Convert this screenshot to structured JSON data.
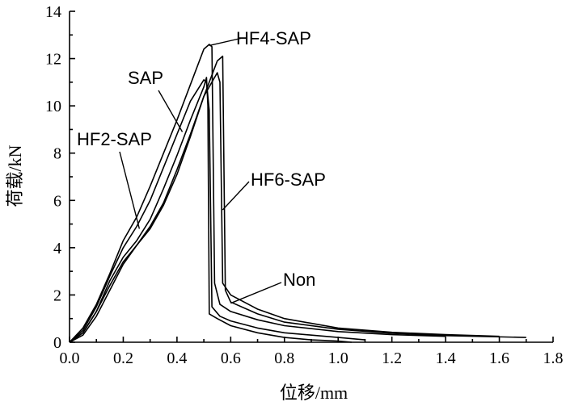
{
  "chart_data": {
    "type": "line",
    "xlabel": "位移/mm",
    "ylabel": "荷载/kN",
    "xlim": [
      0,
      1.8
    ],
    "ylim": [
      0,
      14
    ],
    "xticks": [
      0.0,
      0.2,
      0.4,
      0.6,
      0.8,
      1.0,
      1.2,
      1.4,
      1.6,
      1.8
    ],
    "yticks": [
      0,
      2,
      4,
      6,
      8,
      10,
      12,
      14
    ],
    "xtick_labels": [
      "0.0",
      "0.2",
      "0.4",
      "0.6",
      "0.8",
      "1.0",
      "1.2",
      "1.4",
      "1.6",
      "1.8"
    ],
    "ytick_labels": [
      "0",
      "2",
      "4",
      "6",
      "8",
      "10",
      "12",
      "14"
    ],
    "grid": false,
    "legend": "none",
    "line_color": "#000000",
    "series": [
      {
        "name": "HF4-SAP",
        "x": [
          0,
          0.05,
          0.1,
          0.15,
          0.2,
          0.25,
          0.3,
          0.35,
          0.4,
          0.45,
          0.5,
          0.52,
          0.53,
          0.54,
          0.56,
          0.6,
          0.7,
          0.8,
          1.0,
          1.2,
          1.4
        ],
        "y": [
          0,
          0.6,
          1.6,
          2.9,
          4.3,
          5.3,
          6.6,
          8.0,
          9.4,
          10.9,
          12.4,
          12.6,
          12.5,
          2.5,
          1.6,
          1.3,
          0.95,
          0.7,
          0.45,
          0.32,
          0.25
        ]
      },
      {
        "name": "SAP",
        "x": [
          0,
          0.05,
          0.1,
          0.15,
          0.2,
          0.25,
          0.3,
          0.35,
          0.4,
          0.45,
          0.5,
          0.51,
          0.52,
          0.53,
          0.56,
          0.6,
          0.7,
          0.8,
          1.0,
          1.1
        ],
        "y": [
          0,
          0.5,
          1.5,
          2.8,
          4.0,
          4.9,
          6.0,
          7.4,
          8.8,
          10.2,
          11.1,
          11.0,
          9.8,
          1.5,
          1.1,
          0.9,
          0.6,
          0.4,
          0.2,
          0.1
        ]
      },
      {
        "name": "HF2-SAP",
        "x": [
          0,
          0.05,
          0.1,
          0.15,
          0.2,
          0.25,
          0.3,
          0.35,
          0.4,
          0.45,
          0.5,
          0.51,
          0.515,
          0.52,
          0.55,
          0.6,
          0.7,
          0.8,
          0.9,
          1.0,
          1.05
        ],
        "y": [
          0,
          0.4,
          1.3,
          2.6,
          3.6,
          4.3,
          5.2,
          6.5,
          7.9,
          9.4,
          10.8,
          11.2,
          10.0,
          1.2,
          1.0,
          0.7,
          0.4,
          0.2,
          0.1,
          0.05,
          0.0
        ]
      },
      {
        "name": "HF6-SAP",
        "x": [
          0,
          0.05,
          0.1,
          0.15,
          0.2,
          0.25,
          0.3,
          0.35,
          0.4,
          0.45,
          0.5,
          0.55,
          0.57,
          0.58,
          0.6,
          0.7,
          0.8,
          1.0,
          1.2,
          1.4,
          1.7
        ],
        "y": [
          0,
          0.4,
          1.3,
          2.4,
          3.4,
          4.1,
          4.8,
          5.8,
          7.1,
          8.7,
          10.4,
          11.9,
          12.1,
          2.2,
          1.7,
          1.2,
          0.85,
          0.55,
          0.38,
          0.28,
          0.2
        ]
      },
      {
        "name": "Non",
        "x": [
          0,
          0.05,
          0.1,
          0.15,
          0.2,
          0.25,
          0.3,
          0.35,
          0.4,
          0.45,
          0.5,
          0.55,
          0.56,
          0.57,
          0.6,
          0.7,
          0.8,
          1.0,
          1.2,
          1.4,
          1.6
        ],
        "y": [
          0,
          0.3,
          1.1,
          2.2,
          3.3,
          4.1,
          4.9,
          5.9,
          7.3,
          8.8,
          10.4,
          11.4,
          11.0,
          2.5,
          2.0,
          1.4,
          1.0,
          0.6,
          0.42,
          0.32,
          0.25
        ]
      }
    ],
    "annotations": [
      {
        "text": "HF4-SAP",
        "series": "HF4-SAP",
        "pointer": [
          0.52,
          12.55
        ]
      },
      {
        "text": "SAP",
        "series": "SAP",
        "pointer": [
          0.42,
          8.9
        ]
      },
      {
        "text": "HF2-SAP",
        "series": "HF2-SAP",
        "pointer": [
          0.26,
          4.8
        ]
      },
      {
        "text": "HF6-SAP",
        "series": "HF6-SAP",
        "pointer": [
          0.57,
          5.6
        ]
      },
      {
        "text": "Non",
        "series": "Non",
        "pointer": [
          0.6,
          1.65
        ]
      }
    ]
  }
}
